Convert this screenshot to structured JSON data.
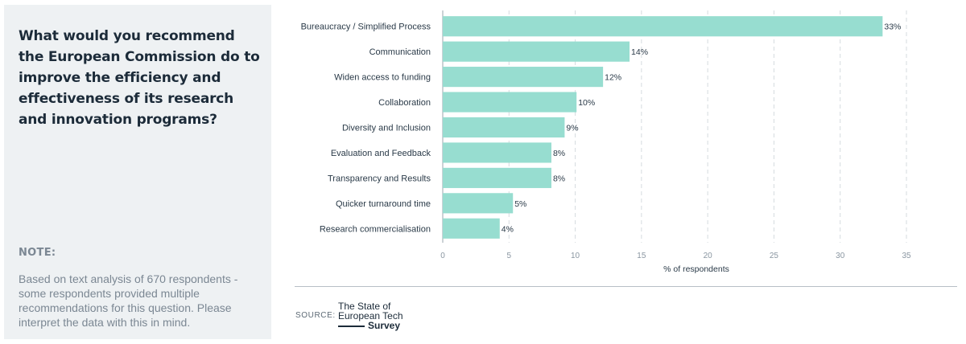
{
  "panel": {
    "question": "What would you recommend the European Commission do to improve the efficiency and effectiveness of its research and innovation programs?",
    "note_heading": "NOTE:",
    "note_text": "Based on text analysis of 670 respondents - some respondents provided multiple recommendations for this question. Please interpret the data with this in mind."
  },
  "source": {
    "label": "SOURCE:",
    "brand_line1": "The State of",
    "brand_line2": "European Tech",
    "brand_line3": "Survey"
  },
  "colors": {
    "bar": "#97ddd0",
    "grid": "#d6dbdf",
    "axis": "#9aa4ad"
  },
  "chart_data": {
    "type": "bar",
    "orientation": "horizontal",
    "categories": [
      "Bureaucracy / Simplified Process",
      "Communication",
      "Widen access to funding",
      "Collaboration",
      "Diversity and Inclusion",
      "Evaluation and Feedback",
      "Transparency and Results",
      "Quicker turnaround time",
      "Research commercialisation"
    ],
    "values": [
      33.2,
      14.1,
      12.1,
      10.1,
      9.2,
      8.2,
      8.2,
      5.3,
      4.3
    ],
    "value_labels": [
      "33%",
      "14%",
      "12%",
      "10%",
      "9%",
      "8%",
      "8%",
      "5%",
      "4%"
    ],
    "xlabel": "% of respondents",
    "xlim": [
      0,
      35
    ],
    "xticks": [
      0,
      5,
      10,
      15,
      20,
      25,
      30,
      35
    ],
    "grid": "vertical-dashed"
  }
}
